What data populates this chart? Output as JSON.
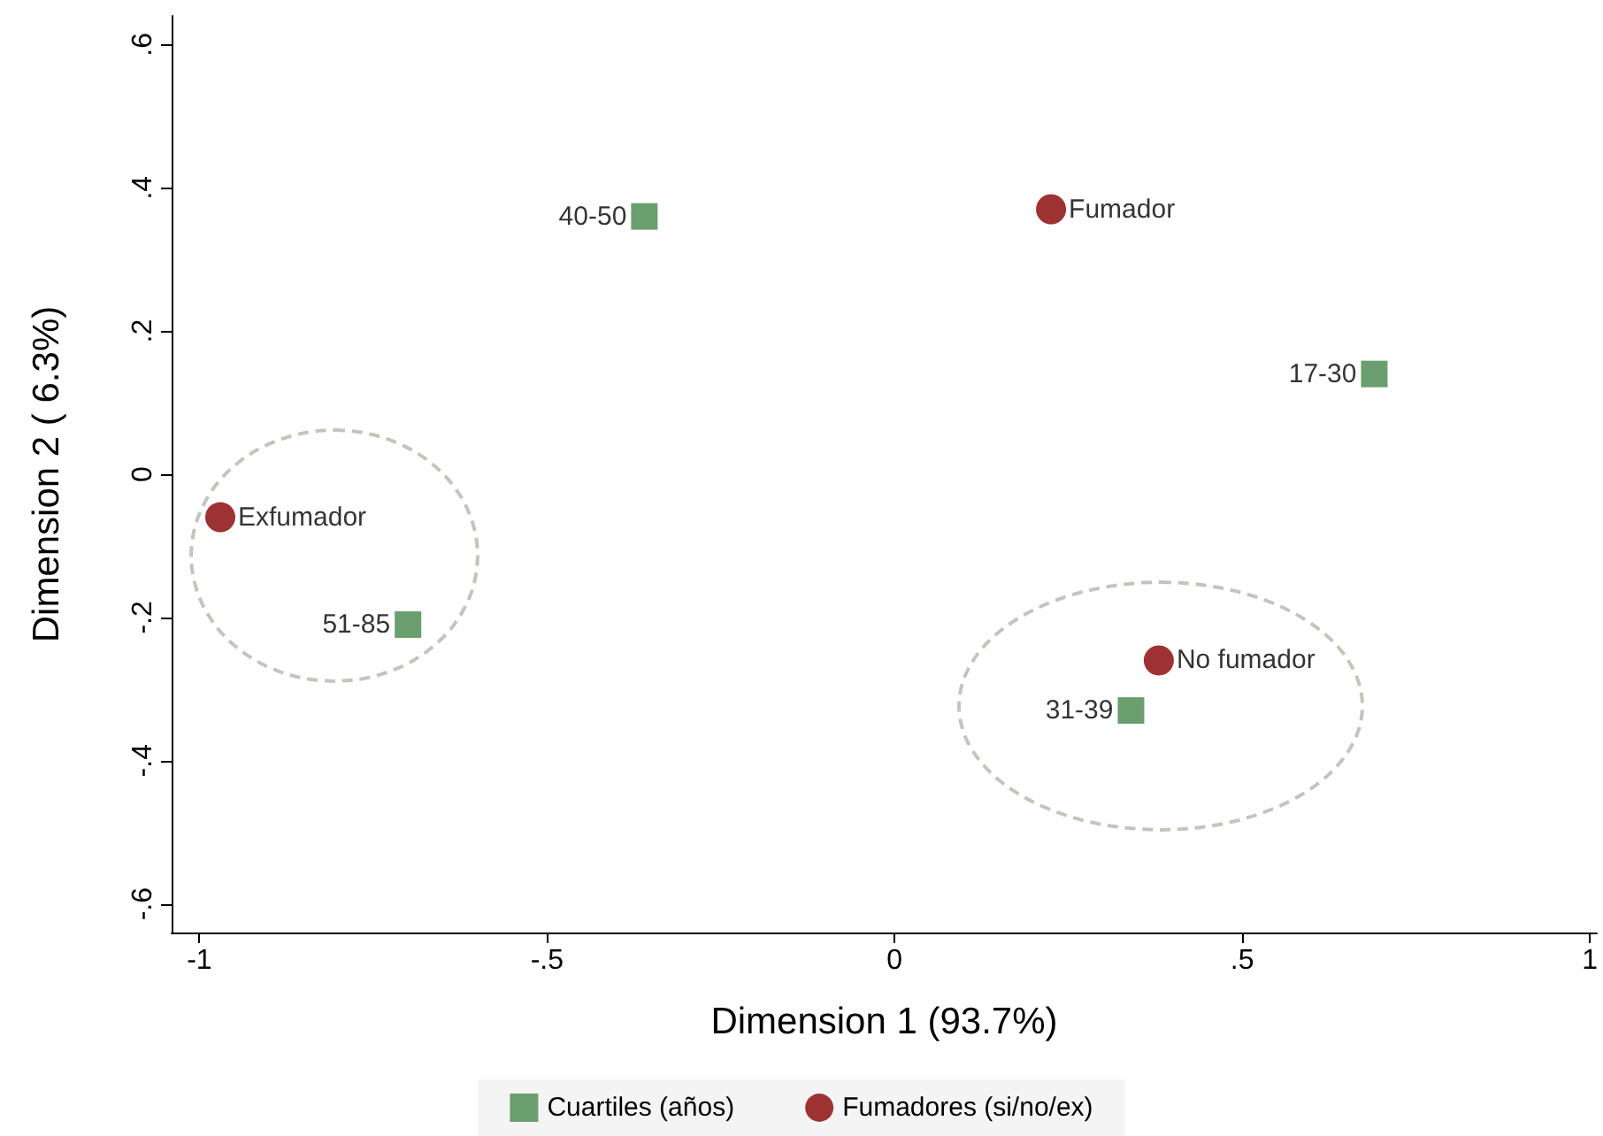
{
  "chart_data": {
    "type": "scatter",
    "xlabel": "Dimension 1 (93.7%)",
    "ylabel": "Dimension 2 ( 6.3%)",
    "series": [
      {
        "name": "Cuartiles (años)",
        "color": "#6a9e6e",
        "marker": "square",
        "x": [
          -0.36,
          0.69,
          0.34,
          -0.7
        ],
        "values": [
          0.36,
          0.14,
          -0.33,
          -0.21
        ]
      },
      {
        "name": "Fumadores (si/no/ex)",
        "color": "#9e3232",
        "marker": "circle",
        "x": [
          0.225,
          0.38,
          -0.97
        ],
        "values": [
          0.37,
          -0.26,
          -0.06
        ]
      }
    ],
    "annotations": [
      {
        "text": "40-50",
        "x": -0.36,
        "y": 0.36
      },
      {
        "text": "17-30",
        "x": 0.69,
        "y": 0.14
      },
      {
        "text": "31-39",
        "x": 0.34,
        "y": -0.33
      },
      {
        "text": "51-85",
        "x": -0.7,
        "y": -0.21
      },
      {
        "text": "Fumador",
        "x": 0.225,
        "y": 0.37
      },
      {
        "text": "No fumador",
        "x": 0.38,
        "y": -0.26
      },
      {
        "text": "Exfumador",
        "x": -0.97,
        "y": -0.06
      }
    ],
    "xlim": [
      -1.04,
      1.01
    ],
    "ylim": [
      -0.64,
      0.64
    ],
    "xticks": [
      -1,
      {
        "value": -0.5,
        "label": "-.5"
      },
      0,
      {
        "value": 0.5,
        "label": ".5"
      },
      1
    ],
    "yticks": [
      {
        "value": -0.6,
        "label": "-.6"
      },
      {
        "value": -0.4,
        "label": "-.4"
      },
      {
        "value": -0.2,
        "label": "-.2"
      },
      0,
      {
        "value": 0.2,
        "label": ".2"
      },
      {
        "value": 0.4,
        "label": ".4"
      },
      {
        "value": 0.6,
        "label": ".6"
      }
    ],
    "grid": false,
    "legend": "bottom"
  }
}
